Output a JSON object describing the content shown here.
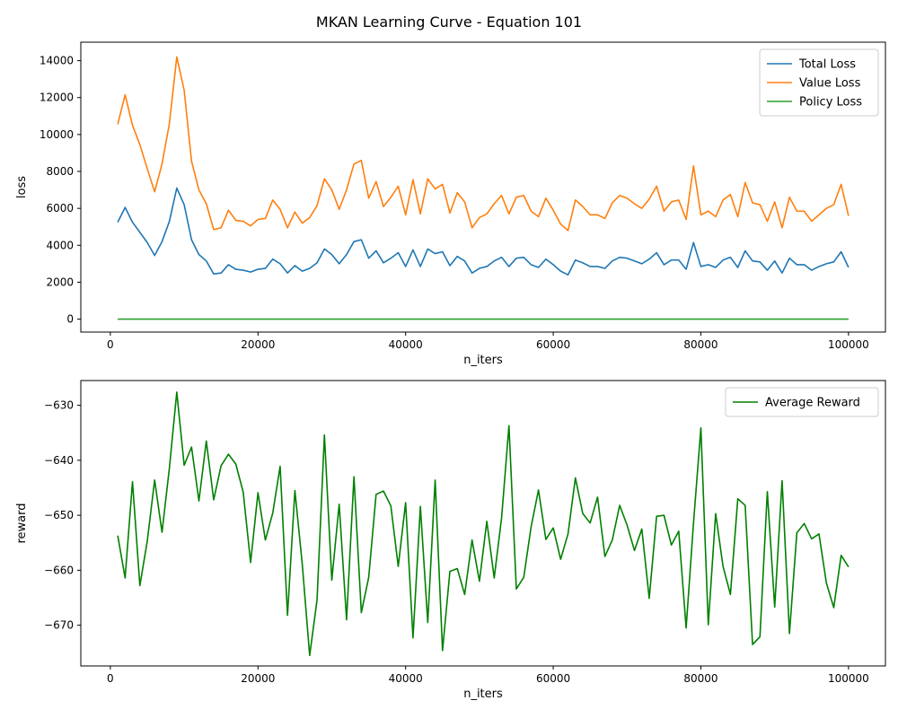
{
  "figure": {
    "title": "MKAN Learning Curve - Equation 101"
  },
  "chart_data": [
    {
      "type": "line",
      "xlabel": "n_iters",
      "ylabel": "loss",
      "xlim": [
        -4000,
        105000
      ],
      "ylim": [
        -700,
        15000
      ],
      "xticks": [
        0,
        20000,
        40000,
        60000,
        80000,
        100000
      ],
      "xtick_labels": [
        "0",
        "20000",
        "40000",
        "60000",
        "80000",
        "100000"
      ],
      "yticks": [
        0,
        2000,
        4000,
        6000,
        8000,
        10000,
        12000,
        14000
      ],
      "ytick_labels": [
        "0",
        "2000",
        "4000",
        "6000",
        "8000",
        "10000",
        "12000",
        "14000"
      ],
      "grid": false,
      "legend": "top-right",
      "x": [
        1000,
        2000,
        3000,
        4000,
        5000,
        6000,
        7000,
        8000,
        9000,
        10000,
        11000,
        12000,
        13000,
        14000,
        15000,
        16000,
        17000,
        18000,
        19000,
        20000,
        21000,
        22000,
        23000,
        24000,
        25000,
        26000,
        27000,
        28000,
        29000,
        30000,
        31000,
        32000,
        33000,
        34000,
        35000,
        36000,
        37000,
        38000,
        39000,
        40000,
        41000,
        42000,
        43000,
        44000,
        45000,
        46000,
        47000,
        48000,
        49000,
        50000,
        51000,
        52000,
        53000,
        54000,
        55000,
        56000,
        57000,
        58000,
        59000,
        60000,
        61000,
        62000,
        63000,
        64000,
        65000,
        66000,
        67000,
        68000,
        69000,
        70000,
        71000,
        72000,
        73000,
        74000,
        75000,
        76000,
        77000,
        78000,
        79000,
        80000,
        81000,
        82000,
        83000,
        84000,
        85000,
        86000,
        87000,
        88000,
        89000,
        90000,
        91000,
        92000,
        93000,
        94000,
        95000,
        96000,
        97000,
        98000,
        99000,
        100000
      ],
      "series": [
        {
          "name": "Total Loss",
          "color": "#1f77b4",
          "values": [
            5250,
            6050,
            5250,
            4700,
            4150,
            3450,
            4200,
            5300,
            7100,
            6200,
            4300,
            3500,
            3150,
            2450,
            2500,
            2950,
            2700,
            2650,
            2550,
            2700,
            2750,
            3250,
            3000,
            2500,
            2900,
            2600,
            2750,
            3050,
            3800,
            3500,
            3000,
            3500,
            4200,
            4300,
            3300,
            3700,
            3050,
            3300,
            3600,
            2850,
            3750,
            2850,
            3800,
            3550,
            3650,
            2900,
            3400,
            3150,
            2500,
            2750,
            2850,
            3150,
            3350,
            2850,
            3300,
            3350,
            2950,
            2800,
            3250,
            2950,
            2600,
            2400,
            3200,
            3050,
            2850,
            2850,
            2750,
            3150,
            3350,
            3300,
            3150,
            3000,
            3250,
            3600,
            2950,
            3200,
            3200,
            2700,
            4150,
            2850,
            2950,
            2800,
            3200,
            3350,
            2800,
            3700,
            3150,
            3100,
            2650,
            3150,
            2500,
            3300,
            2950,
            2950,
            2650,
            2850,
            3000,
            3100,
            3650,
            2800
          ]
        },
        {
          "name": "Value Loss",
          "color": "#ff7f0e",
          "values": [
            10550,
            12150,
            10500,
            9450,
            8150,
            6900,
            8400,
            10600,
            14200,
            12400,
            8550,
            7000,
            6250,
            4850,
            4950,
            5900,
            5350,
            5300,
            5050,
            5400,
            5450,
            6450,
            5950,
            4950,
            5800,
            5200,
            5500,
            6150,
            7600,
            7000,
            5950,
            7000,
            8400,
            8600,
            6550,
            7450,
            6100,
            6600,
            7200,
            5650,
            7550,
            5700,
            7600,
            7050,
            7300,
            5750,
            6850,
            6350,
            4950,
            5500,
            5700,
            6250,
            6700,
            5700,
            6600,
            6700,
            5850,
            5550,
            6550,
            5900,
            5150,
            4800,
            6450,
            6100,
            5650,
            5650,
            5450,
            6300,
            6700,
            6550,
            6250,
            6000,
            6500,
            7200,
            5850,
            6350,
            6450,
            5400,
            8300,
            5650,
            5850,
            5550,
            6450,
            6750,
            5550,
            7400,
            6300,
            6200,
            5300,
            6350,
            4950,
            6600,
            5850,
            5850,
            5300,
            5650,
            6000,
            6200,
            7300,
            5600
          ]
        },
        {
          "name": "Policy Loss",
          "color": "#2ca02c",
          "values": [
            0,
            0,
            0,
            0,
            0,
            0,
            0,
            0,
            0,
            0,
            0,
            0,
            0,
            0,
            0,
            0,
            0,
            0,
            0,
            0,
            0,
            0,
            0,
            0,
            0,
            0,
            0,
            0,
            0,
            0,
            0,
            0,
            0,
            0,
            0,
            0,
            0,
            0,
            0,
            0,
            0,
            0,
            0,
            0,
            0,
            0,
            0,
            0,
            0,
            0,
            0,
            0,
            0,
            0,
            0,
            0,
            0,
            0,
            0,
            0,
            0,
            0,
            0,
            0,
            0,
            0,
            0,
            0,
            0,
            0,
            0,
            0,
            0,
            0,
            0,
            0,
            0,
            0,
            0,
            0,
            0,
            0,
            0,
            0,
            0,
            0,
            0,
            0,
            0,
            0,
            0,
            0,
            0,
            0,
            0,
            0,
            0,
            0,
            0,
            0
          ]
        }
      ]
    },
    {
      "type": "line",
      "xlabel": "n_iters",
      "ylabel": "reward",
      "xlim": [
        -4000,
        105000
      ],
      "ylim": [
        -677.4,
        -625.5
      ],
      "xticks": [
        0,
        20000,
        40000,
        60000,
        80000,
        100000
      ],
      "xtick_labels": [
        "0",
        "20000",
        "40000",
        "60000",
        "80000",
        "100000"
      ],
      "yticks": [
        -630,
        -640,
        -650,
        -660,
        -670
      ],
      "ytick_labels": [
        "−630",
        "−640",
        "−650",
        "−660",
        "−670"
      ],
      "grid": false,
      "legend": "top-right",
      "x": [
        1000,
        2000,
        3000,
        4000,
        5000,
        6000,
        7000,
        8000,
        9000,
        10000,
        11000,
        12000,
        13000,
        14000,
        15000,
        16000,
        17000,
        18000,
        19000,
        20000,
        21000,
        22000,
        23000,
        24000,
        25000,
        26000,
        27000,
        28000,
        29000,
        30000,
        31000,
        32000,
        33000,
        34000,
        35000,
        36000,
        37000,
        38000,
        39000,
        40000,
        41000,
        42000,
        43000,
        44000,
        45000,
        46000,
        47000,
        48000,
        49000,
        50000,
        51000,
        52000,
        53000,
        54000,
        55000,
        56000,
        57000,
        58000,
        59000,
        60000,
        61000,
        62000,
        63000,
        64000,
        65000,
        66000,
        67000,
        68000,
        69000,
        70000,
        71000,
        72000,
        73000,
        74000,
        75000,
        76000,
        77000,
        78000,
        79000,
        80000,
        81000,
        82000,
        83000,
        84000,
        85000,
        86000,
        87000,
        88000,
        89000,
        90000,
        91000,
        92000,
        93000,
        94000,
        95000,
        96000,
        97000,
        98000,
        99000,
        100000
      ],
      "series": [
        {
          "name": "Average Reward",
          "color": "#008000",
          "values": [
            -653.7,
            -661.4,
            -643.9,
            -662.8,
            -654.7,
            -643.6,
            -653.1,
            -641.4,
            -627.6,
            -640.9,
            -637.6,
            -647.4,
            -636.5,
            -647.2,
            -641.0,
            -638.9,
            -640.7,
            -645.8,
            -658.6,
            -645.9,
            -654.5,
            -649.6,
            -641.1,
            -668.2,
            -645.5,
            -658.9,
            -675.5,
            -665.4,
            -635.4,
            -661.8,
            -648.0,
            -669.0,
            -643.0,
            -667.7,
            -661.3,
            -646.2,
            -645.6,
            -648.3,
            -659.3,
            -647.7,
            -672.3,
            -648.4,
            -669.5,
            -643.6,
            -674.6,
            -660.2,
            -659.7,
            -664.4,
            -654.5,
            -662.0,
            -651.1,
            -661.4,
            -650.5,
            -633.7,
            -663.4,
            -661.3,
            -652.1,
            -645.4,
            -654.4,
            -652.3,
            -658.0,
            -653.4,
            -643.2,
            -649.7,
            -651.4,
            -646.7,
            -657.5,
            -654.5,
            -648.2,
            -651.8,
            -656.4,
            -652.5,
            -665.1,
            -650.2,
            -650.0,
            -655.4,
            -652.9,
            -670.5,
            -651.4,
            -634.1,
            -669.9,
            -649.7,
            -659.3,
            -664.4,
            -647.0,
            -648.2,
            -673.5,
            -672.1,
            -645.7,
            -666.7,
            -643.7,
            -671.5,
            -653.2,
            -651.5,
            -654.3,
            -653.4,
            -662.3,
            -666.8,
            -657.3,
            -659.4
          ]
        }
      ]
    }
  ]
}
